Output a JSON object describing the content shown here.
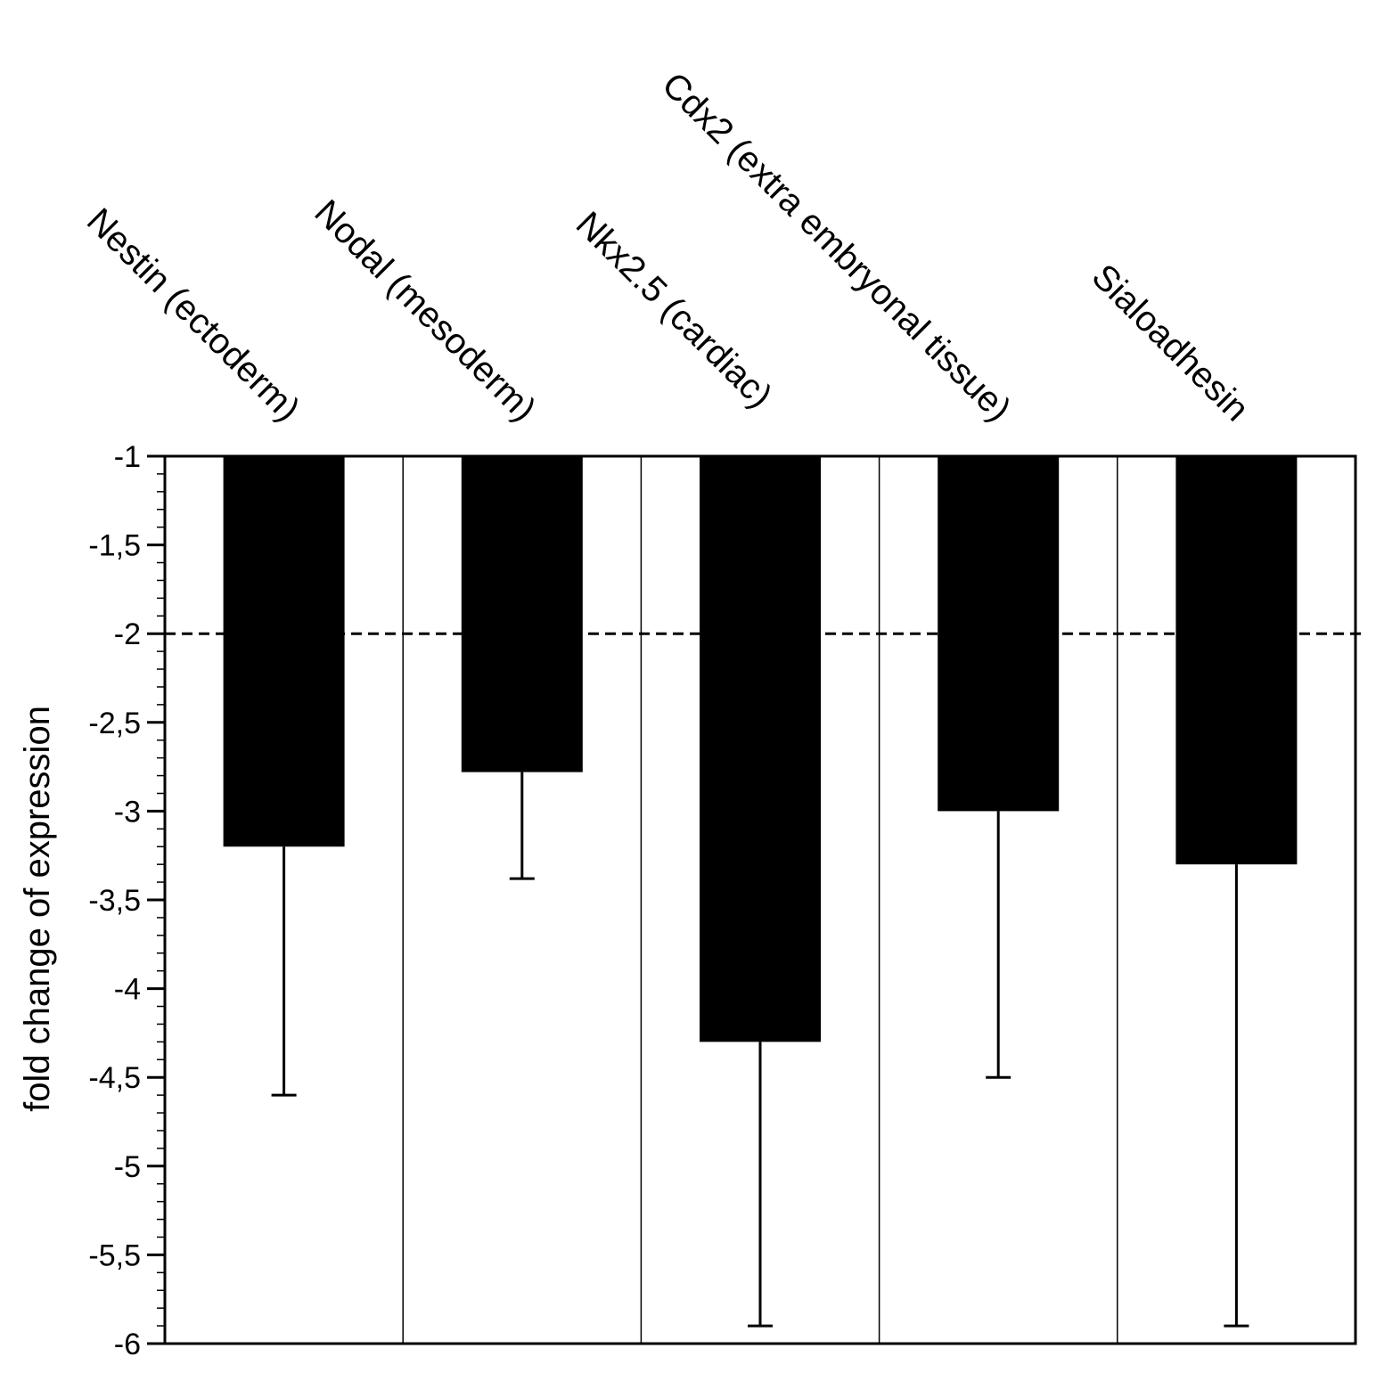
{
  "chart_data": {
    "type": "bar",
    "categories": [
      "Nestin (ectoderm)",
      "Nodal (mesoderm)",
      "Nkx2.5 (cardiac)",
      "Cdx2 (extra embryonal tissue)",
      "Sialoadhesin"
    ],
    "values": [
      -3.2,
      -2.78,
      -4.3,
      -3.0,
      -3.3
    ],
    "error_bottom": [
      -4.6,
      -3.38,
      -5.9,
      -4.5,
      -5.9
    ],
    "ylabel": "fold change of expression",
    "ylim": [
      -6,
      -1
    ],
    "y_ticks": [
      -1,
      -1.5,
      -2,
      -2.5,
      -3,
      -3.5,
      -4,
      -4.5,
      -5,
      -5.5,
      -6
    ],
    "y_tick_labels": [
      "-1",
      "-1,5",
      "-2",
      "-2,5",
      "-3",
      "-3,5",
      "-4",
      "-4,5",
      "-5",
      "-5,5",
      "-6"
    ],
    "reference_line": -2,
    "bar_color": "#000000",
    "category_labels_position": "top, rotated"
  }
}
